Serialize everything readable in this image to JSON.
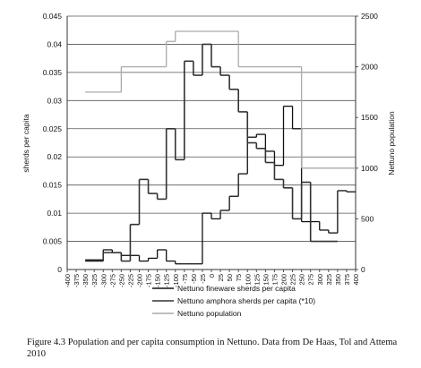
{
  "chart_data": {
    "type": "step",
    "ylabel": "sherds per capita",
    "y2label": "Nettuno population",
    "xlim": [
      -400,
      400
    ],
    "xticks": [
      -400,
      -375,
      -350,
      -325,
      -300,
      -275,
      -250,
      -225,
      -200,
      -175,
      -150,
      -125,
      -100,
      -75,
      -50,
      -25,
      0,
      25,
      50,
      75,
      100,
      125,
      150,
      175,
      200,
      225,
      250,
      275,
      300,
      325,
      350,
      375,
      400
    ],
    "ylim": [
      0,
      0.045
    ],
    "yticks": [
      0,
      0.005,
      0.01,
      0.015,
      0.02,
      0.025,
      0.03,
      0.035,
      0.04,
      0.045
    ],
    "y2lim": [
      0,
      2500
    ],
    "y2ticks": [
      0,
      500,
      1000,
      1500,
      2000,
      2500
    ],
    "grid": true,
    "series": [
      {
        "name": "Nettuno fineware sherds per capita",
        "color": "#111111",
        "x": [
          -350,
          -325,
          -300,
          -275,
          -250,
          -225,
          -200,
          -175,
          -150,
          -125,
          -100,
          -75,
          -50,
          -25,
          0,
          25,
          50,
          75,
          100,
          125,
          150,
          175,
          200,
          225,
          250,
          275,
          300,
          325,
          350,
          375,
          400
        ],
        "values": [
          0.0015,
          0.0015,
          0.0035,
          0.003,
          0.0025,
          0.0025,
          0.0015,
          0.002,
          0.0035,
          0.0015,
          0.001,
          0.001,
          0.001,
          0.01,
          0.009,
          0.0105,
          0.013,
          0.017,
          0.0235,
          0.024,
          0.021,
          0.0185,
          0.029,
          0.025,
          0.0085,
          0.0085,
          0.007,
          0.0065,
          0.014,
          0.0138,
          0.0138
        ]
      },
      {
        "name": "Nettuno amphora sherds per capita (*10)",
        "color": "#333333",
        "x": [
          -350,
          -300,
          -250,
          -225,
          -200,
          -175,
          -150,
          -125,
          -100,
          -75,
          -50,
          -25,
          0,
          25,
          50,
          75,
          100,
          125,
          150,
          175,
          200,
          225,
          250,
          275,
          300,
          350
        ],
        "values": [
          0.0017,
          0.003,
          0.0015,
          0.008,
          0.016,
          0.0135,
          0.0125,
          0.025,
          0.0195,
          0.037,
          0.0345,
          0.04,
          0.036,
          0.0345,
          0.032,
          0.028,
          0.0225,
          0.0215,
          0.019,
          0.016,
          0.0145,
          0.009,
          0.0155,
          0.005,
          0.005,
          0.005
        ]
      },
      {
        "name": "Nettuno population",
        "color": "#aaaaaa",
        "axis": "y2",
        "x": [
          -350,
          -250,
          -125,
          -100,
          75,
          250,
          400
        ],
        "values": [
          1750,
          2000,
          2250,
          2350,
          2000,
          1000,
          1000
        ]
      }
    ],
    "caption": "Figure 4.3  Population and per capita consumption in Nettuno. Data from De Haas, Tol and Attema 2010"
  }
}
